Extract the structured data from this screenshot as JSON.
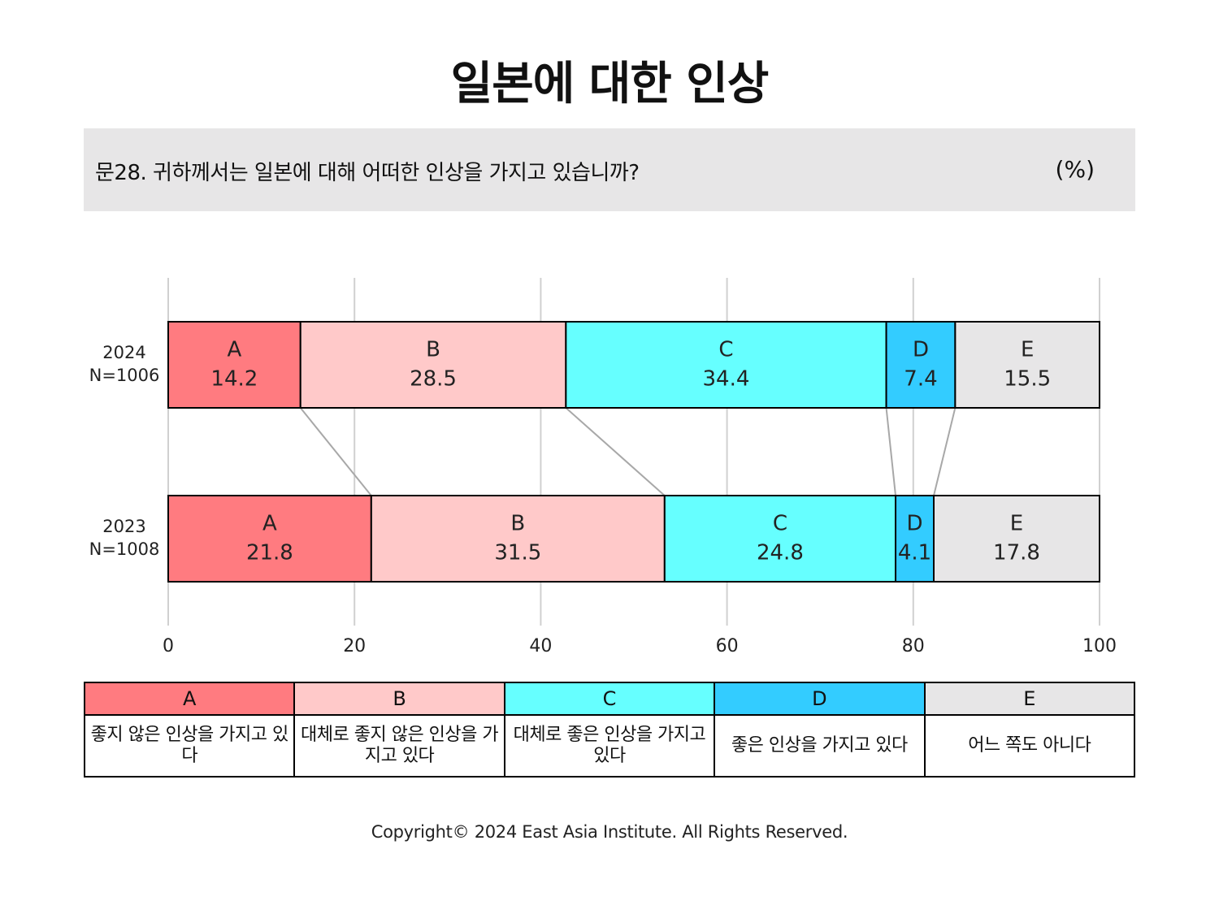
{
  "title": "일본에 대한 인상",
  "question": "문28. 귀하께서는 일본에 대해 어떠한 인상을 가지고 있습니까?",
  "unit": "(%)",
  "colors": {
    "A": "#ff7b80",
    "B": "#ffc9c9",
    "C": "#66ffff",
    "D": "#33ccff",
    "E": "#e7e6e7"
  },
  "chart_data": {
    "type": "bar",
    "orientation": "horizontal-stacked",
    "categories": [
      {
        "year": "2024",
        "n": "N=1006"
      },
      {
        "year": "2023",
        "n": "N=1008"
      }
    ],
    "series": [
      {
        "name": "A",
        "values": [
          14.2,
          21.8
        ]
      },
      {
        "name": "B",
        "values": [
          28.5,
          31.5
        ]
      },
      {
        "name": "C",
        "values": [
          34.4,
          24.8
        ]
      },
      {
        "name": "D",
        "values": [
          7.4,
          4.1
        ]
      },
      {
        "name": "E",
        "values": [
          15.5,
          17.8
        ]
      }
    ],
    "value_labels": [
      [
        "14.2",
        "28.5",
        "34.4",
        "7.4",
        "15.5"
      ],
      [
        "21.8",
        "31.5",
        "24.8",
        "4.1",
        "17.8"
      ]
    ],
    "xlim": [
      0,
      100
    ],
    "xticks": [
      "0",
      "20",
      "40",
      "60",
      "80",
      "100"
    ],
    "grid": true,
    "connector_lines": true
  },
  "legend": [
    {
      "key": "A",
      "label": "좋지 않은 인상을 가지고 있다"
    },
    {
      "key": "B",
      "label": "대체로 좋지 않은 인상을 가지고 있다"
    },
    {
      "key": "C",
      "label": "대체로 좋은 인상을 가지고 있다"
    },
    {
      "key": "D",
      "label": "좋은 인상을 가지고 있다"
    },
    {
      "key": "E",
      "label": "어느 쪽도 아니다"
    }
  ],
  "copyright": "Copyright© 2024 East Asia Institute. All Rights Reserved."
}
